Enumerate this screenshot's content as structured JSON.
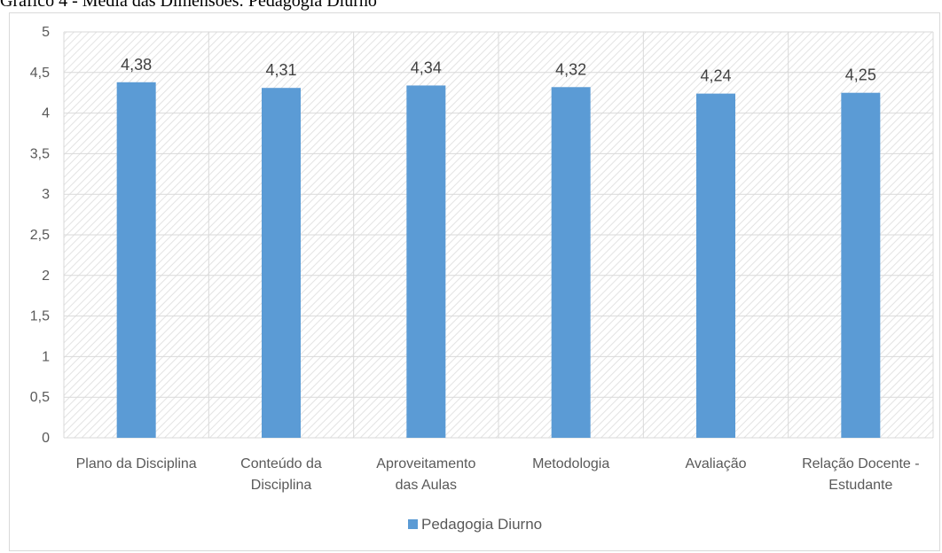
{
  "caption": "Gráfico 4 - Média das Dimensões: Pedagogia Diurno",
  "chart_data": {
    "type": "bar",
    "categories": [
      [
        "Plano da Disciplina"
      ],
      [
        "Conteúdo da",
        "Disciplina"
      ],
      [
        "Aproveitamento",
        "das Aulas"
      ],
      [
        "Metodologia"
      ],
      [
        "Avaliação"
      ],
      [
        "Relação Docente -",
        "Estudante"
      ]
    ],
    "series": [
      {
        "name": "Pedagogia Diurno",
        "values": [
          4.38,
          4.31,
          4.34,
          4.32,
          4.24,
          4.25
        ],
        "color": "#5b9bd5"
      }
    ],
    "data_labels": [
      "4,38",
      "4,31",
      "4,34",
      "4,32",
      "4,24",
      "4,25"
    ],
    "ylim": [
      0,
      5
    ],
    "yticks": [
      "0",
      "0,5",
      "1",
      "1,5",
      "2",
      "2,5",
      "3",
      "3,5",
      "4",
      "4,5",
      "5"
    ],
    "grid": true,
    "plot_pattern": "diagonal-hatch",
    "legend_position": "bottom",
    "xlabel": "",
    "ylabel": ""
  }
}
